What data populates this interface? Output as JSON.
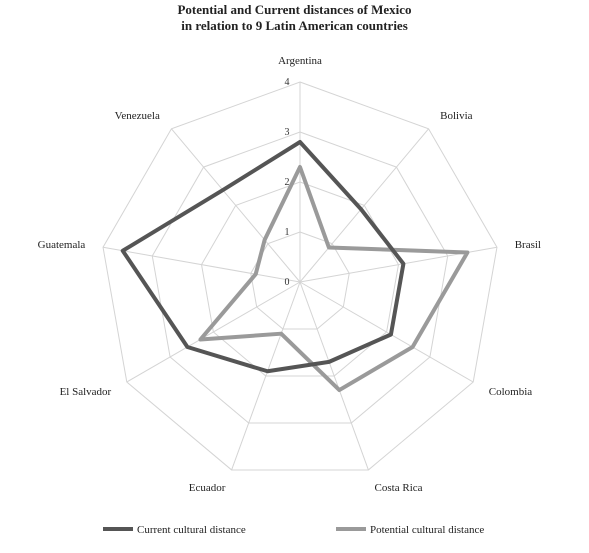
{
  "chart_data": {
    "type": "radar",
    "title_lines": [
      "Potential and Current distances of Mexico",
      "in relation to 9 Latin American countries"
    ],
    "categories": [
      "Argentina",
      "Bolivia",
      "Brasil",
      "Colombia",
      "Costa Rica",
      "Ecuador",
      "El Salvador",
      "Guatemala",
      "Venezuela"
    ],
    "ticks": [
      "0",
      "1",
      "2",
      "3",
      "4"
    ],
    "rlim": [
      0,
      4
    ],
    "grid": true,
    "legend_position": "bottom",
    "series": [
      {
        "name": "Current cultural distance",
        "color": "#555555",
        "values": [
          2.8,
          1.9,
          2.1,
          2.1,
          1.7,
          1.9,
          2.6,
          3.6,
          2.4
        ]
      },
      {
        "name": "Potential cultural distance",
        "color": "#9a9a9a",
        "values": [
          2.3,
          0.9,
          3.4,
          2.6,
          2.3,
          1.1,
          2.3,
          0.9,
          1.1
        ]
      }
    ]
  }
}
